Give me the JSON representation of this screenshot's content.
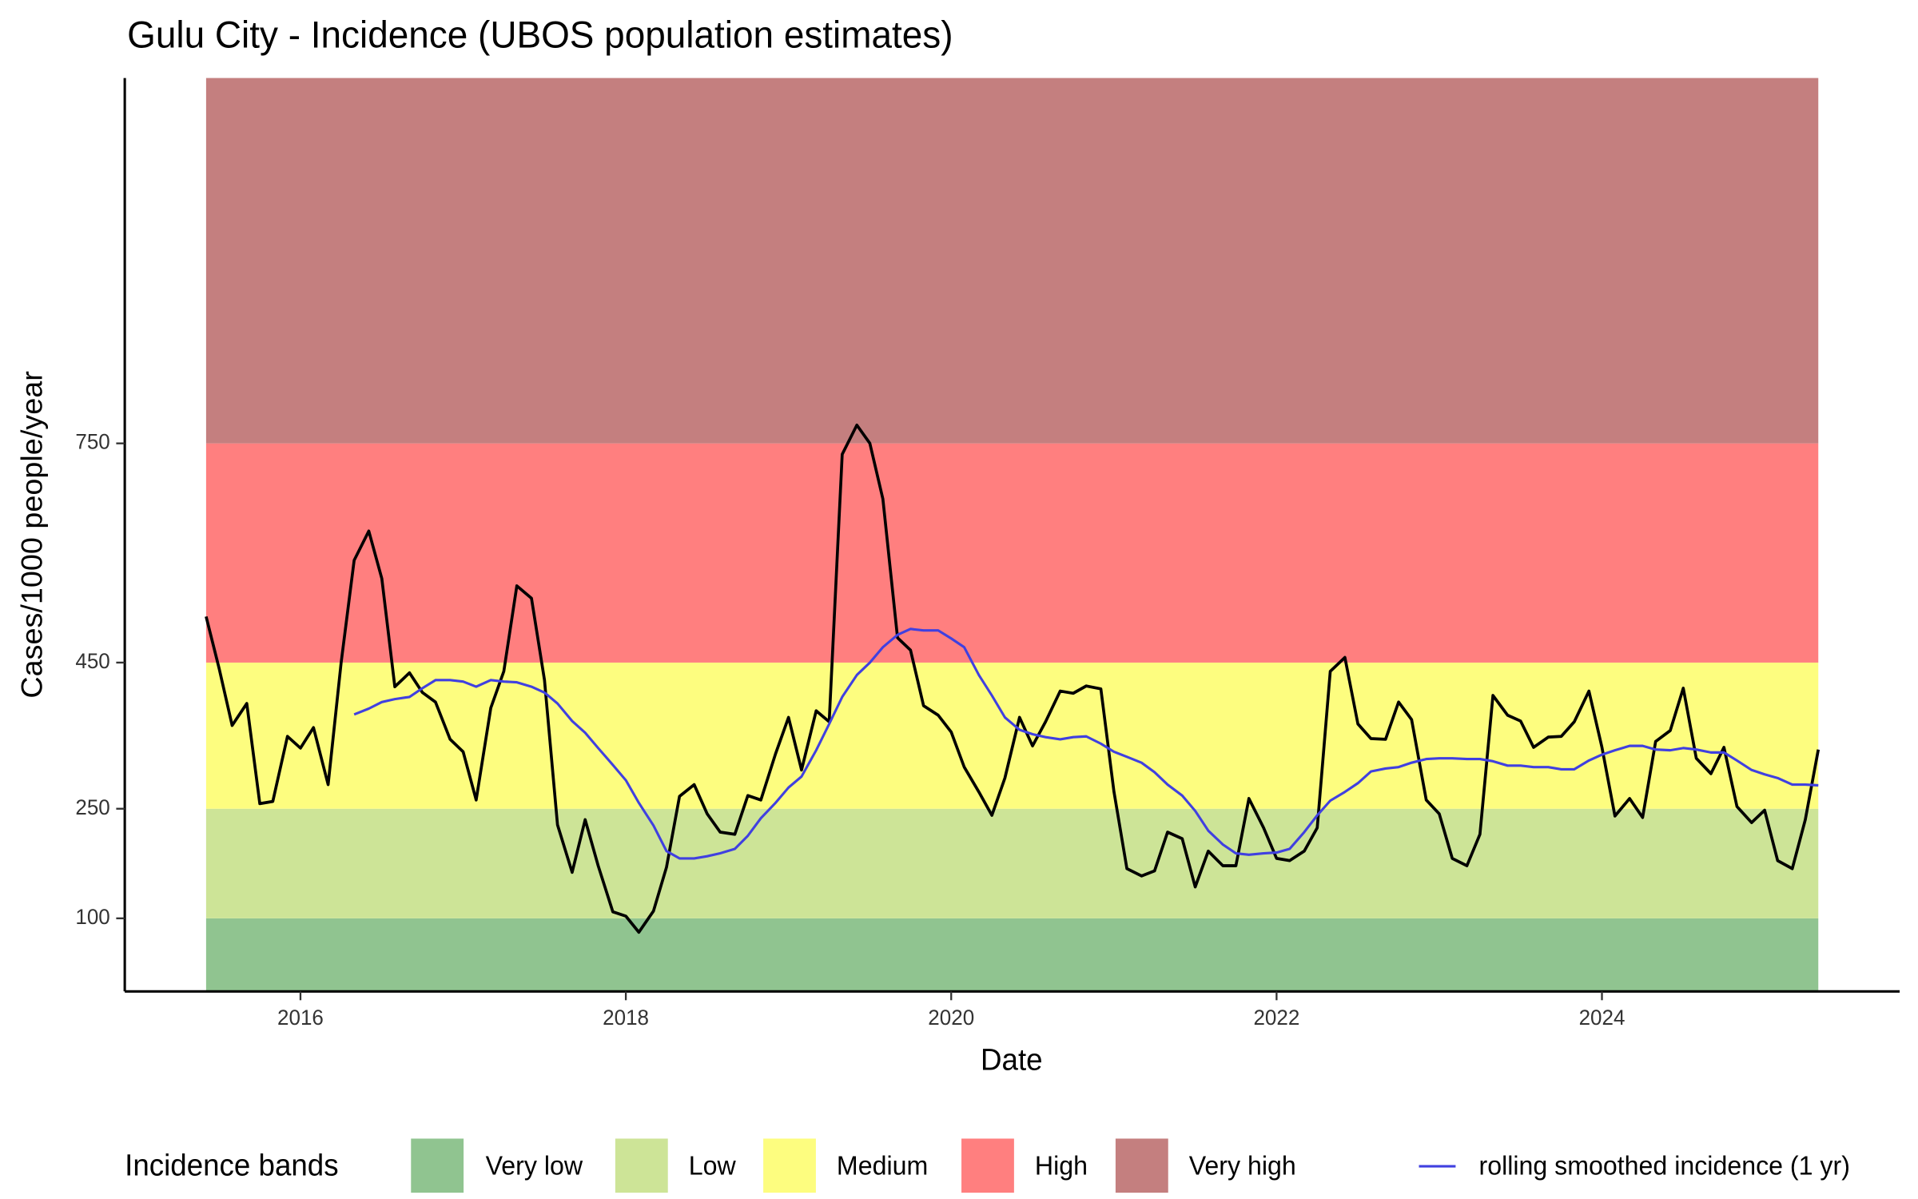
{
  "chart_data": {
    "type": "line",
    "title": "Gulu City - Incidence (UBOS population estimates)",
    "x_label": "Date",
    "y_label": "Cases/1000 people/year",
    "legend_title": "Incidence bands",
    "legend_position": "bottom",
    "xlim": [
      2014.92,
      2025.83
    ],
    "xticks": [
      2016,
      2018,
      2020,
      2022,
      2024
    ],
    "ylim": [
      0,
      1250
    ],
    "yticks": [
      100,
      250,
      450,
      750
    ],
    "bands": [
      {
        "name": "Very low",
        "from": 0,
        "to": 100,
        "color": "#90c490"
      },
      {
        "name": "Low",
        "from": 100,
        "to": 250,
        "color": "#cde497"
      },
      {
        "name": "Medium",
        "from": 250,
        "to": 450,
        "color": "#fdfd7f"
      },
      {
        "name": "High",
        "from": 450,
        "to": 750,
        "color": "#ff7f7f"
      },
      {
        "name": "Very high",
        "from": 750,
        "to": 1250,
        "color": "#c47f7f"
      }
    ],
    "x": [
      2015.42,
      2015.5,
      2015.58,
      2015.67,
      2015.75,
      2015.83,
      2015.92,
      2016,
      2016.08,
      2016.17,
      2016.25,
      2016.33,
      2016.42,
      2016.5,
      2016.58,
      2016.67,
      2016.75,
      2016.83,
      2016.92,
      2017,
      2017.08,
      2017.17,
      2017.25,
      2017.33,
      2017.42,
      2017.5,
      2017.58,
      2017.67,
      2017.75,
      2017.83,
      2017.92,
      2018,
      2018.08,
      2018.17,
      2018.25,
      2018.33,
      2018.42,
      2018.5,
      2018.58,
      2018.67,
      2018.75,
      2018.83,
      2018.92,
      2019,
      2019.08,
      2019.17,
      2019.25,
      2019.33,
      2019.42,
      2019.5,
      2019.58,
      2019.67,
      2019.75,
      2019.83,
      2019.92,
      2020,
      2020.08,
      2020.17,
      2020.25,
      2020.33,
      2020.42,
      2020.5,
      2020.58,
      2020.67,
      2020.75,
      2020.83,
      2020.92,
      2021,
      2021.08,
      2021.17,
      2021.25,
      2021.33,
      2021.42,
      2021.5,
      2021.58,
      2021.67,
      2021.75,
      2021.83,
      2021.92,
      2022,
      2022.08,
      2022.17,
      2022.25,
      2022.33,
      2022.42,
      2022.5,
      2022.58,
      2022.67,
      2022.75,
      2022.83,
      2022.92,
      2023,
      2023.08,
      2023.17,
      2023.25,
      2023.33,
      2023.42,
      2023.5,
      2023.58,
      2023.67,
      2023.75,
      2023.83,
      2023.92,
      2024,
      2024.08,
      2024.17,
      2024.25,
      2024.33,
      2024.42,
      2024.5,
      2024.58,
      2024.67,
      2024.75,
      2024.83,
      2024.92,
      2025,
      2025.08,
      2025.17,
      2025.25,
      2025.33
    ],
    "series": [
      {
        "color": "#000000",
        "values": [
          513,
          442,
          364,
          394,
          257,
          260,
          349,
          333,
          361,
          283,
          450,
          590,
          630,
          565,
          417,
          436,
          409,
          396,
          345,
          328,
          262,
          388,
          438,
          555,
          538,
          426,
          228,
          163,
          235,
          172,
          109,
          103,
          81,
          110,
          170,
          267,
          283,
          243,
          218,
          215,
          268,
          262,
          325,
          375,
          303,
          384,
          369,
          735,
          775,
          750,
          674,
          484,
          467,
          391,
          378,
          355,
          307,
          273,
          241,
          292,
          375,
          336,
          369,
          411,
          408,
          418,
          414,
          274,
          168,
          158,
          165,
          218,
          209,
          143,
          192,
          172,
          172,
          264,
          224,
          182,
          179,
          192,
          224,
          438,
          457,
          366,
          346,
          345,
          396,
          372,
          262,
          243,
          182,
          172,
          215,
          405,
          378,
          370,
          334,
          348,
          349,
          369,
          411,
          334,
          240,
          264,
          238,
          342,
          357,
          415,
          319,
          298,
          334,
          253,
          231,
          248,
          179,
          168,
          235,
          331
        ]
      },
      {
        "name": "rolling smoothed incidence (1 yr)",
        "color": "#4040e0",
        "values": [
          null,
          null,
          null,
          null,
          null,
          null,
          null,
          null,
          null,
          null,
          null,
          379,
          387,
          396,
          400,
          403,
          415,
          426,
          426,
          424,
          417,
          426,
          424,
          423,
          417,
          409,
          394,
          370,
          354,
          333,
          310,
          289,
          258,
          227,
          192,
          182,
          182,
          185,
          189,
          195,
          213,
          237,
          258,
          279,
          294,
          330,
          366,
          403,
          433,
          450,
          471,
          488,
          496,
          494,
          494,
          483,
          471,
          433,
          405,
          375,
          358,
          352,
          348,
          345,
          348,
          349,
          339,
          328,
          321,
          313,
          300,
          283,
          268,
          247,
          220,
          201,
          189,
          187,
          189,
          190,
          195,
          218,
          241,
          261,
          273,
          285,
          301,
          305,
          307,
          313,
          318,
          319,
          319,
          318,
          318,
          315,
          309,
          309,
          307,
          307,
          304,
          304,
          316,
          324,
          330,
          336,
          336,
          331,
          330,
          333,
          331,
          327,
          327,
          316,
          303,
          297,
          292,
          283,
          283,
          282
        ]
      }
    ]
  }
}
